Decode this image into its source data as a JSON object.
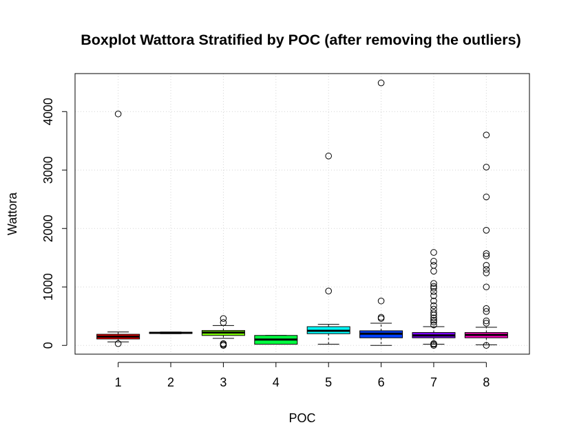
{
  "chart_data": {
    "type": "boxplot",
    "title": "Boxplot Wattora Stratified by POC (after removing the outliers)",
    "xlabel": "POC",
    "ylabel": "Wattora",
    "categories": [
      "1",
      "2",
      "3",
      "4",
      "5",
      "6",
      "7",
      "8"
    ],
    "y_ticks": [
      0,
      1000,
      2000,
      3000,
      4000
    ],
    "ylim": [
      -150,
      4650
    ],
    "grid": true,
    "boxes": [
      {
        "label": "1",
        "color": "#FF0000",
        "whisker_low": 60,
        "q1": 110,
        "median": 150,
        "q3": 190,
        "whisker_high": 230,
        "outliers": [
          30,
          3960
        ]
      },
      {
        "label": "2",
        "color": "#FFBF00",
        "whisker_low": 200,
        "q1": 205,
        "median": 215,
        "q3": 225,
        "whisker_high": 230,
        "outliers": []
      },
      {
        "label": "3",
        "color": "#80FF00",
        "whisker_low": 120,
        "q1": 170,
        "median": 220,
        "q3": 255,
        "whisker_high": 340,
        "outliers": [
          0,
          15,
          30,
          390,
          460
        ]
      },
      {
        "label": "4",
        "color": "#00FF40",
        "whisker_low": 20,
        "q1": 20,
        "median": 100,
        "q3": 170,
        "whisker_high": 170,
        "outliers": []
      },
      {
        "label": "5",
        "color": "#00FFFF",
        "whisker_low": 20,
        "q1": 200,
        "median": 250,
        "q3": 320,
        "whisker_high": 360,
        "outliers": [
          930,
          3240
        ]
      },
      {
        "label": "6",
        "color": "#0040FF",
        "whisker_low": 0,
        "q1": 130,
        "median": 200,
        "q3": 250,
        "whisker_high": 380,
        "outliers": [
          460,
          480,
          760,
          4490
        ]
      },
      {
        "label": "7",
        "color": "#8000FF",
        "whisker_low": 20,
        "q1": 130,
        "median": 170,
        "q3": 220,
        "whisker_high": 320,
        "outliers": [
          0,
          20,
          30,
          350,
          400,
          430,
          470,
          520,
          560,
          620,
          680,
          760,
          850,
          920,
          980,
          1010,
          1060,
          1270,
          1370,
          1440,
          1590
        ]
      },
      {
        "label": "8",
        "color": "#FF00BF",
        "whisker_low": 10,
        "q1": 130,
        "median": 180,
        "q3": 220,
        "whisker_high": 310,
        "outliers": [
          0,
          380,
          420,
          580,
          630,
          1000,
          1240,
          1300,
          1370,
          1530,
          1570,
          1970,
          2540,
          3050,
          3600
        ]
      }
    ]
  }
}
